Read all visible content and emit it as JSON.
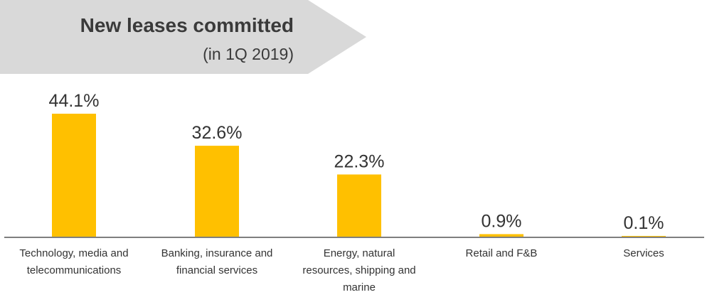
{
  "header": {
    "title": "New leases committed",
    "subtitle": "(in 1Q 2019)"
  },
  "colors": {
    "bar": "#FFC000",
    "banner": "#D9D9D9",
    "axis": "#7F7F7F",
    "text": "#333333"
  },
  "chart_data": {
    "type": "bar",
    "title": "New leases committed",
    "subtitle": "(in 1Q 2019)",
    "categories": [
      "Technology, media and telecommunications",
      "Banking, insurance and financial services",
      "Energy, natural resources, shipping and marine",
      "Retail and F&B",
      "Services"
    ],
    "values": [
      44.1,
      32.6,
      22.3,
      0.9,
      0.1
    ],
    "value_labels": [
      "44.1%",
      "32.6%",
      "22.3%",
      "0.9%",
      "0.1%"
    ],
    "category_label_lines": [
      [
        "Technology, media and",
        "telecommunications"
      ],
      [
        "Banking, insurance and",
        "financial services"
      ],
      [
        "Energy, natural",
        "resources, shipping and",
        "marine"
      ],
      [
        "Retail and F&B"
      ],
      [
        "Services"
      ]
    ],
    "unit": "%",
    "ylim": [
      0,
      44.1
    ],
    "grid": false,
    "legend": "none"
  }
}
